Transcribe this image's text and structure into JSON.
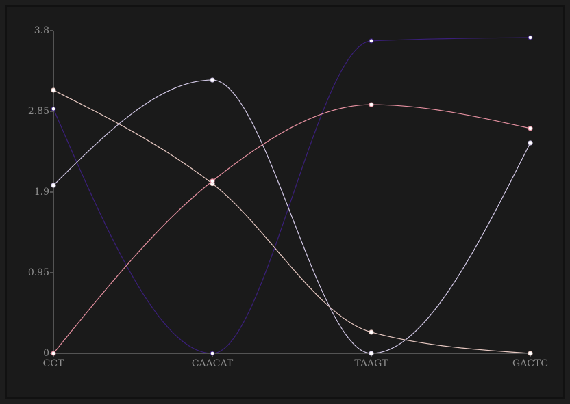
{
  "chart_data": {
    "type": "line",
    "title": "",
    "xlabel": "",
    "ylabel": "",
    "categories": [
      "CCT",
      "CAACAT",
      "TAAGT",
      "GACTC"
    ],
    "y_ticks": [
      "0",
      "0.95",
      "1.9",
      "2.85",
      "3.8"
    ],
    "ylim": [
      0,
      3.8
    ],
    "grid": false,
    "legend": "none",
    "curve": "monotone",
    "series": [
      {
        "color": "#3a1f7a",
        "values": [
          2.88,
          0.0,
          3.68,
          3.72
        ]
      },
      {
        "color": "#d2c8e6",
        "values": [
          1.98,
          3.22,
          0.0,
          2.48
        ]
      },
      {
        "color": "#e8c9c2",
        "values": [
          3.1,
          2.0,
          0.25,
          0.0
        ]
      },
      {
        "color": "#e590a0",
        "values": [
          0.0,
          2.03,
          2.93,
          2.65
        ]
      }
    ]
  }
}
